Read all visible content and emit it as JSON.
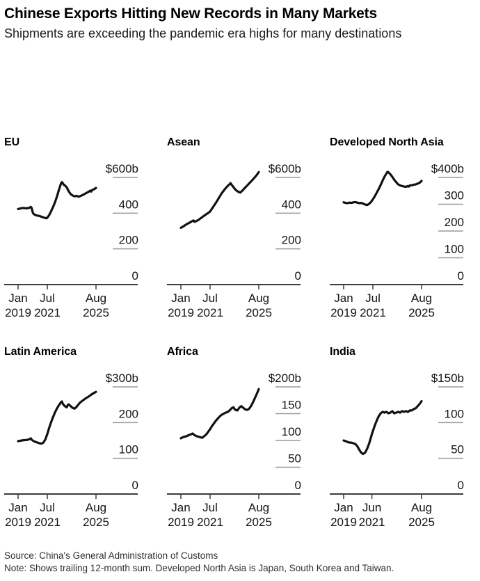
{
  "header": {
    "title": "Chinese Exports Hitting New Records in Many Markets",
    "subtitle": "Shipments are exceeding the pandemic era highs for many destinations"
  },
  "footer": {
    "source": "Source: China's General Administration of Customs",
    "note": "Note: Shows trailing 12-month sum. Developed North Asia is Japan, South Korea and Taiwan."
  },
  "colors": {
    "line": "#111111",
    "grid_tick": "#999999",
    "axis": "#3c3c3c",
    "label_text": "#141414"
  },
  "chart_data": [
    {
      "type": "line",
      "title": "EU",
      "unit": "USD billions, trailing 12-month sum",
      "ylim": [
        0,
        600
      ],
      "ytick_labels": [
        "$600b",
        "400",
        "200",
        "0"
      ],
      "xtick_labels": [
        {
          "month": 0,
          "top": "Jan",
          "bottom": "2019"
        },
        {
          "month": 30,
          "top": "Jul",
          "bottom": "2021"
        },
        {
          "month": 80,
          "top": "Aug",
          "bottom": "2025"
        }
      ],
      "points": [
        [
          0,
          423
        ],
        [
          2,
          426
        ],
        [
          4,
          428
        ],
        [
          6,
          429
        ],
        [
          8,
          427
        ],
        [
          10,
          428
        ],
        [
          12,
          431
        ],
        [
          13,
          435
        ],
        [
          14,
          428
        ],
        [
          15,
          405
        ],
        [
          16,
          395
        ],
        [
          18,
          389
        ],
        [
          20,
          386
        ],
        [
          22,
          384
        ],
        [
          24,
          380
        ],
        [
          26,
          376
        ],
        [
          28,
          373
        ],
        [
          29,
          371
        ],
        [
          30,
          375
        ],
        [
          32,
          390
        ],
        [
          34,
          412
        ],
        [
          36,
          436
        ],
        [
          38,
          462
        ],
        [
          40,
          495
        ],
        [
          42,
          532
        ],
        [
          44,
          565
        ],
        [
          45,
          574
        ],
        [
          46,
          567
        ],
        [
          47,
          558
        ],
        [
          48,
          556
        ],
        [
          50,
          544
        ],
        [
          52,
          522
        ],
        [
          54,
          507
        ],
        [
          56,
          499
        ],
        [
          58,
          494
        ],
        [
          60,
          497
        ],
        [
          62,
          492
        ],
        [
          64,
          496
        ],
        [
          66,
          501
        ],
        [
          68,
          506
        ],
        [
          70,
          513
        ],
        [
          72,
          518
        ],
        [
          74,
          526
        ],
        [
          75,
          521
        ],
        [
          76,
          529
        ],
        [
          78,
          534
        ],
        [
          80,
          541
        ]
      ]
    },
    {
      "type": "line",
      "title": "Asean",
      "unit": "USD billions, trailing 12-month sum",
      "ylim": [
        0,
        600
      ],
      "ytick_labels": [
        "$600b",
        "400",
        "200",
        "0"
      ],
      "xtick_labels": [
        {
          "month": 0,
          "top": "Jan",
          "bottom": "2019"
        },
        {
          "month": 30,
          "top": "Jul",
          "bottom": "2021"
        },
        {
          "month": 80,
          "top": "Aug",
          "bottom": "2025"
        }
      ],
      "points": [
        [
          0,
          318
        ],
        [
          2,
          324
        ],
        [
          4,
          331
        ],
        [
          6,
          338
        ],
        [
          8,
          344
        ],
        [
          10,
          350
        ],
        [
          12,
          357
        ],
        [
          13,
          359
        ],
        [
          14,
          352
        ],
        [
          16,
          356
        ],
        [
          18,
          362
        ],
        [
          20,
          370
        ],
        [
          22,
          378
        ],
        [
          24,
          386
        ],
        [
          26,
          394
        ],
        [
          28,
          401
        ],
        [
          30,
          409
        ],
        [
          32,
          426
        ],
        [
          34,
          442
        ],
        [
          36,
          458
        ],
        [
          38,
          476
        ],
        [
          40,
          494
        ],
        [
          42,
          512
        ],
        [
          44,
          526
        ],
        [
          46,
          540
        ],
        [
          48,
          552
        ],
        [
          50,
          562
        ],
        [
          51,
          568
        ],
        [
          52,
          560
        ],
        [
          54,
          546
        ],
        [
          56,
          532
        ],
        [
          58,
          523
        ],
        [
          60,
          517
        ],
        [
          61,
          515
        ],
        [
          62,
          520
        ],
        [
          64,
          531
        ],
        [
          66,
          543
        ],
        [
          68,
          554
        ],
        [
          70,
          566
        ],
        [
          72,
          577
        ],
        [
          74,
          589
        ],
        [
          76,
          601
        ],
        [
          78,
          614
        ],
        [
          80,
          630
        ]
      ]
    },
    {
      "type": "line",
      "title": "Developed North Asia",
      "unit": "USD billions, trailing 12-month sum",
      "ylim": [
        0,
        400
      ],
      "ytick_labels": [
        "$400b",
        "300",
        "200",
        "100",
        "0"
      ],
      "xtick_labels": [
        {
          "month": 0,
          "top": "Jan",
          "bottom": "2019"
        },
        {
          "month": 30,
          "top": "Jul",
          "bottom": "2021"
        },
        {
          "month": 80,
          "top": "Aug",
          "bottom": "2025"
        }
      ],
      "points": [
        [
          0,
          307
        ],
        [
          2,
          305
        ],
        [
          4,
          304
        ],
        [
          6,
          306
        ],
        [
          8,
          305
        ],
        [
          10,
          307
        ],
        [
          12,
          308
        ],
        [
          14,
          306
        ],
        [
          16,
          304
        ],
        [
          18,
          305
        ],
        [
          20,
          302
        ],
        [
          22,
          299
        ],
        [
          24,
          297
        ],
        [
          26,
          301
        ],
        [
          28,
          308
        ],
        [
          30,
          318
        ],
        [
          32,
          330
        ],
        [
          34,
          343
        ],
        [
          36,
          357
        ],
        [
          38,
          372
        ],
        [
          40,
          388
        ],
        [
          42,
          403
        ],
        [
          44,
          415
        ],
        [
          45,
          421
        ],
        [
          46,
          419
        ],
        [
          47,
          415
        ],
        [
          48,
          412
        ],
        [
          50,
          402
        ],
        [
          52,
          391
        ],
        [
          54,
          382
        ],
        [
          56,
          374
        ],
        [
          58,
          370
        ],
        [
          60,
          368
        ],
        [
          62,
          366
        ],
        [
          64,
          365
        ],
        [
          66,
          368
        ],
        [
          67,
          366
        ],
        [
          68,
          370
        ],
        [
          70,
          371
        ],
        [
          72,
          373
        ],
        [
          74,
          374
        ],
        [
          76,
          377
        ],
        [
          78,
          380
        ],
        [
          80,
          387
        ]
      ]
    },
    {
      "type": "line",
      "title": "Latin America",
      "unit": "USD billions, trailing 12-month sum",
      "ylim": [
        0,
        300
      ],
      "ytick_labels": [
        "$300b",
        "200",
        "100",
        "0"
      ],
      "xtick_labels": [
        {
          "month": 0,
          "top": "Jan",
          "bottom": "2019"
        },
        {
          "month": 30,
          "top": "Jul",
          "bottom": "2021"
        },
        {
          "month": 80,
          "top": "Aug",
          "bottom": "2025"
        }
      ],
      "points": [
        [
          0,
          148
        ],
        [
          2,
          149
        ],
        [
          4,
          150
        ],
        [
          6,
          151
        ],
        [
          8,
          151
        ],
        [
          10,
          152
        ],
        [
          12,
          154
        ],
        [
          13,
          156
        ],
        [
          14,
          152
        ],
        [
          16,
          148
        ],
        [
          18,
          146
        ],
        [
          20,
          144
        ],
        [
          22,
          142
        ],
        [
          24,
          141
        ],
        [
          26,
          144
        ],
        [
          28,
          153
        ],
        [
          30,
          168
        ],
        [
          32,
          186
        ],
        [
          34,
          202
        ],
        [
          36,
          216
        ],
        [
          38,
          229
        ],
        [
          40,
          240
        ],
        [
          42,
          249
        ],
        [
          44,
          257
        ],
        [
          45,
          259
        ],
        [
          46,
          252
        ],
        [
          48,
          246
        ],
        [
          50,
          243
        ],
        [
          51,
          249
        ],
        [
          52,
          251
        ],
        [
          54,
          246
        ],
        [
          56,
          241
        ],
        [
          58,
          239
        ],
        [
          60,
          244
        ],
        [
          62,
          251
        ],
        [
          64,
          257
        ],
        [
          66,
          261
        ],
        [
          68,
          265
        ],
        [
          70,
          269
        ],
        [
          72,
          272
        ],
        [
          74,
          276
        ],
        [
          76,
          280
        ],
        [
          78,
          283
        ],
        [
          80,
          286
        ]
      ]
    },
    {
      "type": "line",
      "title": "Africa",
      "unit": "USD billions, trailing 12-month sum",
      "ylim": [
        0,
        200
      ],
      "ytick_labels": [
        "$200b",
        "150",
        "100",
        "50",
        "0"
      ],
      "xtick_labels": [
        {
          "month": 0,
          "top": "Jan",
          "bottom": "2019"
        },
        {
          "month": 30,
          "top": "Jul",
          "bottom": "2021"
        },
        {
          "month": 80,
          "top": "Aug",
          "bottom": "2025"
        }
      ],
      "points": [
        [
          0,
          104
        ],
        [
          2,
          106
        ],
        [
          4,
          107
        ],
        [
          6,
          108
        ],
        [
          8,
          110
        ],
        [
          10,
          111
        ],
        [
          12,
          113
        ],
        [
          14,
          110
        ],
        [
          16,
          108
        ],
        [
          18,
          107
        ],
        [
          20,
          106
        ],
        [
          22,
          105
        ],
        [
          24,
          108
        ],
        [
          26,
          111
        ],
        [
          28,
          116
        ],
        [
          30,
          121
        ],
        [
          32,
          127
        ],
        [
          34,
          132
        ],
        [
          36,
          137
        ],
        [
          38,
          141
        ],
        [
          40,
          145
        ],
        [
          42,
          148
        ],
        [
          44,
          150
        ],
        [
          46,
          152
        ],
        [
          48,
          153
        ],
        [
          50,
          156
        ],
        [
          52,
          160
        ],
        [
          54,
          162
        ],
        [
          55,
          159
        ],
        [
          56,
          157
        ],
        [
          58,
          156
        ],
        [
          60,
          161
        ],
        [
          62,
          164
        ],
        [
          64,
          161
        ],
        [
          66,
          158
        ],
        [
          68,
          157
        ],
        [
          70,
          159
        ],
        [
          72,
          164
        ],
        [
          74,
          171
        ],
        [
          76,
          179
        ],
        [
          78,
          187
        ],
        [
          80,
          196
        ]
      ]
    },
    {
      "type": "line",
      "title": "India",
      "unit": "USD billions, trailing 12-month sum",
      "ylim": [
        0,
        150
      ],
      "ytick_labels": [
        "$150b",
        "100",
        "50",
        "0"
      ],
      "xtick_labels": [
        {
          "month": 0,
          "top": "Jan",
          "bottom": "2019"
        },
        {
          "month": 29,
          "top": "Jun",
          "bottom": "2021"
        },
        {
          "month": 80,
          "top": "Aug",
          "bottom": "2025"
        }
      ],
      "points": [
        [
          0,
          75
        ],
        [
          2,
          74
        ],
        [
          4,
          73
        ],
        [
          6,
          72
        ],
        [
          8,
          72
        ],
        [
          10,
          71
        ],
        [
          12,
          70
        ],
        [
          14,
          67
        ],
        [
          16,
          62
        ],
        [
          18,
          58
        ],
        [
          20,
          56
        ],
        [
          22,
          58
        ],
        [
          24,
          63
        ],
        [
          26,
          70
        ],
        [
          28,
          79
        ],
        [
          29,
          84
        ],
        [
          30,
          88
        ],
        [
          32,
          96
        ],
        [
          34,
          103
        ],
        [
          36,
          109
        ],
        [
          38,
          113
        ],
        [
          40,
          115
        ],
        [
          42,
          114
        ],
        [
          44,
          115
        ],
        [
          46,
          113
        ],
        [
          48,
          114
        ],
        [
          50,
          116
        ],
        [
          52,
          113
        ],
        [
          54,
          114
        ],
        [
          56,
          115
        ],
        [
          58,
          114
        ],
        [
          60,
          116
        ],
        [
          62,
          115
        ],
        [
          64,
          116
        ],
        [
          66,
          115
        ],
        [
          68,
          117
        ],
        [
          70,
          117
        ],
        [
          72,
          119
        ],
        [
          74,
          120
        ],
        [
          76,
          123
        ],
        [
          78,
          126
        ],
        [
          80,
          130
        ]
      ]
    }
  ]
}
